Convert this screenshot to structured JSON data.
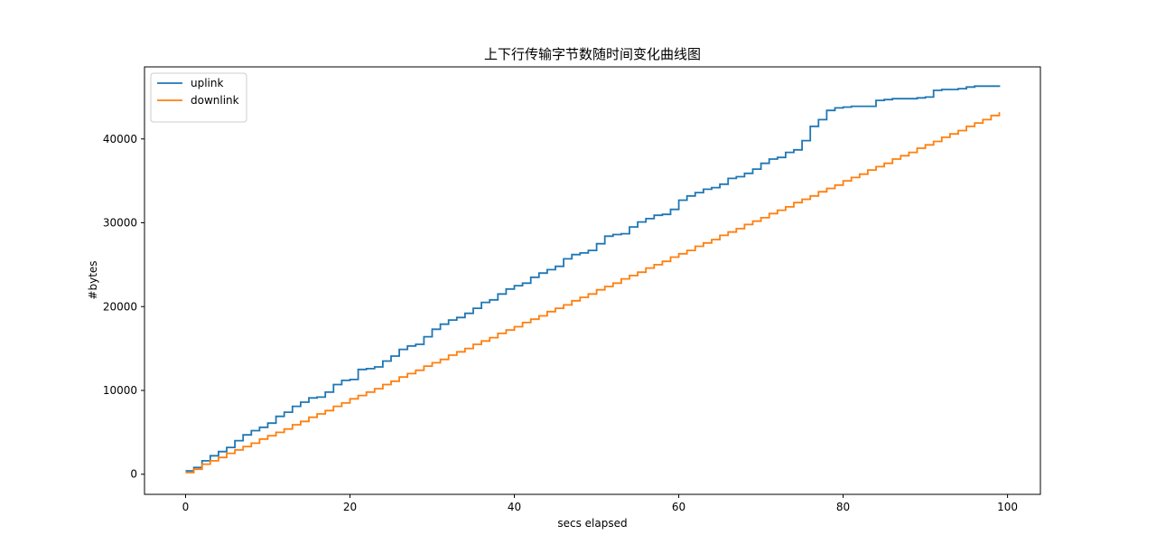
{
  "chart_data": {
    "type": "line",
    "step": true,
    "title": "上下行传输字节数随时间变化曲线图",
    "xlabel": "secs elapsed",
    "ylabel": "#bytes",
    "xlim": [
      -5,
      104
    ],
    "ylim": [
      -2400,
      48600
    ],
    "xticks": [
      0,
      20,
      40,
      60,
      80,
      100
    ],
    "yticks": [
      0,
      10000,
      20000,
      30000,
      40000
    ],
    "grid": false,
    "legend_position": "upper-left",
    "series": [
      {
        "name": "uplink",
        "color": "#1f77b4",
        "x": [
          0,
          1,
          2,
          3,
          4,
          5,
          6,
          7,
          8,
          9,
          10,
          11,
          12,
          13,
          14,
          15,
          16,
          17,
          18,
          19,
          20,
          21,
          22,
          23,
          24,
          25,
          26,
          27,
          28,
          29,
          30,
          31,
          32,
          33,
          34,
          35,
          36,
          37,
          38,
          39,
          40,
          41,
          42,
          43,
          44,
          45,
          46,
          47,
          48,
          49,
          50,
          51,
          52,
          53,
          54,
          55,
          56,
          57,
          58,
          59,
          60,
          61,
          62,
          63,
          64,
          65,
          66,
          67,
          68,
          69,
          70,
          71,
          72,
          73,
          74,
          75,
          76,
          77,
          78,
          79,
          80,
          81,
          82,
          83,
          84,
          85,
          86,
          87,
          88,
          89,
          90,
          91,
          92,
          93,
          94,
          95,
          96,
          97,
          98,
          99
        ],
        "y": [
          400,
          800,
          1600,
          2200,
          2700,
          3200,
          4000,
          4700,
          5200,
          5600,
          6100,
          6900,
          7400,
          8100,
          8600,
          9100,
          9200,
          9800,
          10700,
          11200,
          11300,
          12500,
          12600,
          12800,
          13500,
          14100,
          14900,
          15300,
          15500,
          16400,
          17300,
          17900,
          18400,
          18700,
          19200,
          19800,
          20500,
          20800,
          21500,
          22100,
          22500,
          22800,
          23500,
          24000,
          24400,
          24800,
          25700,
          26200,
          26400,
          26700,
          27500,
          28400,
          28600,
          28700,
          29500,
          30100,
          30500,
          30900,
          31000,
          31600,
          32700,
          33200,
          33600,
          34000,
          34200,
          34600,
          35300,
          35500,
          35900,
          36400,
          37100,
          37600,
          37800,
          38400,
          38700,
          39800,
          41500,
          42300,
          43400,
          43700,
          43800,
          43900,
          43900,
          43900,
          44600,
          44700,
          44800,
          44800,
          44800,
          44900,
          45000,
          45800,
          45900,
          45900,
          46000,
          46200,
          46300,
          46300,
          46300,
          46400
        ]
      },
      {
        "name": "downlink",
        "color": "#ff7f0e",
        "x": [
          0,
          1,
          2,
          3,
          4,
          5,
          6,
          7,
          8,
          9,
          10,
          11,
          12,
          13,
          14,
          15,
          16,
          17,
          18,
          19,
          20,
          21,
          22,
          23,
          24,
          25,
          26,
          27,
          28,
          29,
          30,
          31,
          32,
          33,
          34,
          35,
          36,
          37,
          38,
          39,
          40,
          41,
          42,
          43,
          44,
          45,
          46,
          47,
          48,
          49,
          50,
          51,
          52,
          53,
          54,
          55,
          56,
          57,
          58,
          59,
          60,
          61,
          62,
          63,
          64,
          65,
          66,
          67,
          68,
          69,
          70,
          71,
          72,
          73,
          74,
          75,
          76,
          77,
          78,
          79,
          80,
          81,
          82,
          83,
          84,
          85,
          86,
          87,
          88,
          89,
          90,
          91,
          92,
          93,
          94,
          95,
          96,
          97,
          98,
          99
        ],
        "y": [
          200,
          600,
          1200,
          1600,
          2000,
          2500,
          2900,
          3300,
          3700,
          4200,
          4600,
          5000,
          5400,
          5900,
          6300,
          6800,
          7200,
          7600,
          8100,
          8500,
          9000,
          9400,
          9800,
          10200,
          10700,
          11100,
          11600,
          12000,
          12400,
          12900,
          13300,
          13700,
          14200,
          14600,
          15000,
          15500,
          15900,
          16300,
          16800,
          17200,
          17600,
          18100,
          18500,
          18900,
          19400,
          19800,
          20200,
          20700,
          21100,
          21500,
          22000,
          22400,
          22800,
          23300,
          23700,
          24100,
          24600,
          25000,
          25400,
          25900,
          26300,
          26700,
          27200,
          27600,
          28000,
          28500,
          28900,
          29300,
          29800,
          30200,
          30600,
          31100,
          31500,
          31900,
          32400,
          32800,
          33200,
          33700,
          34100,
          34500,
          35000,
          35400,
          35800,
          36300,
          36700,
          37100,
          37600,
          38000,
          38400,
          38900,
          39300,
          39700,
          40200,
          40600,
          41000,
          41500,
          41900,
          42300,
          42800,
          43200
        ]
      }
    ]
  }
}
